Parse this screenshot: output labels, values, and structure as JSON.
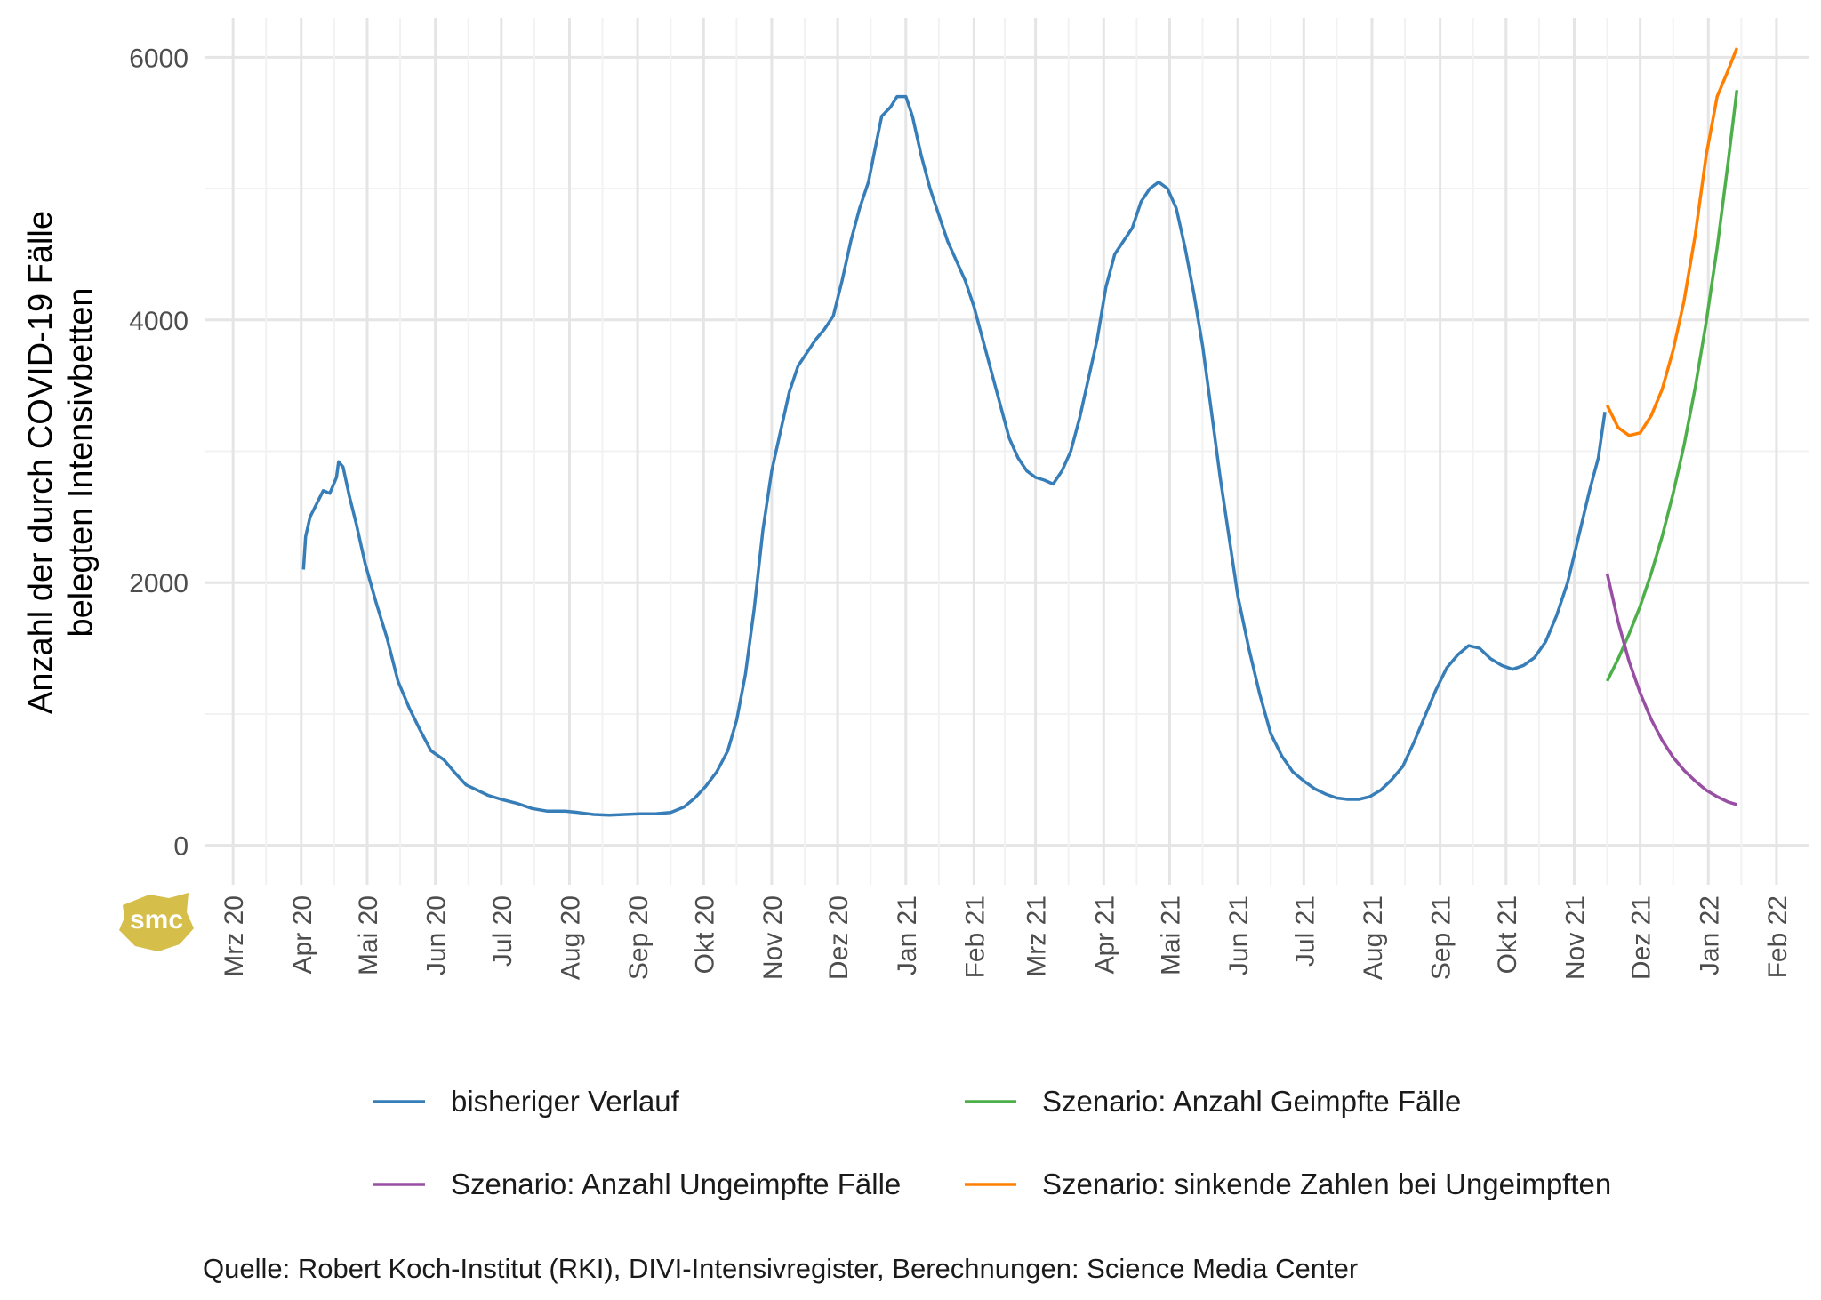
{
  "chart_data": {
    "type": "line",
    "ylabel_line1": "Anzahl der durch COVID-19 Fälle",
    "ylabel_line2": "belegten Intensivbetten",
    "xlabel": "",
    "ylim": [
      -300,
      6300
    ],
    "y_ticks": [
      0,
      2000,
      4000,
      6000
    ],
    "x_range": [
      "2020-02-17",
      "2022-02-16"
    ],
    "x_ticks": [
      {
        "date": "2020-03-01",
        "label": "Mrz 20"
      },
      {
        "date": "2020-04-01",
        "label": "Apr 20"
      },
      {
        "date": "2020-05-01",
        "label": "Mai 20"
      },
      {
        "date": "2020-06-01",
        "label": "Jun 20"
      },
      {
        "date": "2020-07-01",
        "label": "Jul 20"
      },
      {
        "date": "2020-08-01",
        "label": "Aug 20"
      },
      {
        "date": "2020-09-01",
        "label": "Sep 20"
      },
      {
        "date": "2020-10-01",
        "label": "Okt 20"
      },
      {
        "date": "2020-11-01",
        "label": "Nov 20"
      },
      {
        "date": "2020-12-01",
        "label": "Dez 20"
      },
      {
        "date": "2021-01-01",
        "label": "Jan 21"
      },
      {
        "date": "2021-02-01",
        "label": "Feb 21"
      },
      {
        "date": "2021-03-01",
        "label": "Mrz 21"
      },
      {
        "date": "2021-04-01",
        "label": "Apr 21"
      },
      {
        "date": "2021-05-01",
        "label": "Mai 21"
      },
      {
        "date": "2021-06-01",
        "label": "Jun 21"
      },
      {
        "date": "2021-07-01",
        "label": "Jul 21"
      },
      {
        "date": "2021-08-01",
        "label": "Aug 21"
      },
      {
        "date": "2021-09-01",
        "label": "Sep 21"
      },
      {
        "date": "2021-10-01",
        "label": "Okt 21"
      },
      {
        "date": "2021-11-01",
        "label": "Nov 21"
      },
      {
        "date": "2021-12-01",
        "label": "Dez 21"
      },
      {
        "date": "2022-01-01",
        "label": "Jan 22"
      },
      {
        "date": "2022-02-01",
        "label": "Feb 22"
      }
    ],
    "grid": true,
    "legend_position": "bottom",
    "series": [
      {
        "name": "bisheriger Verlauf",
        "color": "#377EB8",
        "points": [
          [
            "2020-04-02",
            2100
          ],
          [
            "2020-04-03",
            2350
          ],
          [
            "2020-04-05",
            2500
          ],
          [
            "2020-04-08",
            2600
          ],
          [
            "2020-04-11",
            2700
          ],
          [
            "2020-04-14",
            2680
          ],
          [
            "2020-04-17",
            2800
          ],
          [
            "2020-04-18",
            2920
          ],
          [
            "2020-04-20",
            2880
          ],
          [
            "2020-04-23",
            2650
          ],
          [
            "2020-04-26",
            2450
          ],
          [
            "2020-04-30",
            2150
          ],
          [
            "2020-05-05",
            1850
          ],
          [
            "2020-05-10",
            1580
          ],
          [
            "2020-05-15",
            1250
          ],
          [
            "2020-05-20",
            1050
          ],
          [
            "2020-05-25",
            880
          ],
          [
            "2020-05-30",
            720
          ],
          [
            "2020-06-05",
            650
          ],
          [
            "2020-06-10",
            550
          ],
          [
            "2020-06-15",
            460
          ],
          [
            "2020-06-20",
            420
          ],
          [
            "2020-06-25",
            380
          ],
          [
            "2020-07-01",
            350
          ],
          [
            "2020-07-08",
            320
          ],
          [
            "2020-07-15",
            280
          ],
          [
            "2020-07-22",
            260
          ],
          [
            "2020-07-30",
            260
          ],
          [
            "2020-08-05",
            250
          ],
          [
            "2020-08-12",
            235
          ],
          [
            "2020-08-19",
            230
          ],
          [
            "2020-08-26",
            235
          ],
          [
            "2020-09-02",
            240
          ],
          [
            "2020-09-09",
            240
          ],
          [
            "2020-09-16",
            250
          ],
          [
            "2020-09-22",
            290
          ],
          [
            "2020-09-27",
            360
          ],
          [
            "2020-10-02",
            450
          ],
          [
            "2020-10-07",
            560
          ],
          [
            "2020-10-12",
            720
          ],
          [
            "2020-10-16",
            950
          ],
          [
            "2020-10-20",
            1300
          ],
          [
            "2020-10-24",
            1800
          ],
          [
            "2020-10-28",
            2400
          ],
          [
            "2020-11-01",
            2850
          ],
          [
            "2020-11-05",
            3150
          ],
          [
            "2020-11-09",
            3450
          ],
          [
            "2020-11-13",
            3650
          ],
          [
            "2020-11-17",
            3750
          ],
          [
            "2020-11-21",
            3850
          ],
          [
            "2020-11-25",
            3930
          ],
          [
            "2020-11-29",
            4030
          ],
          [
            "2020-12-03",
            4300
          ],
          [
            "2020-12-07",
            4600
          ],
          [
            "2020-12-11",
            4850
          ],
          [
            "2020-12-15",
            5050
          ],
          [
            "2020-12-18",
            5300
          ],
          [
            "2020-12-21",
            5550
          ],
          [
            "2020-12-25",
            5620
          ],
          [
            "2020-12-28",
            5700
          ],
          [
            "2021-01-01",
            5700
          ],
          [
            "2021-01-04",
            5550
          ],
          [
            "2021-01-08",
            5250
          ],
          [
            "2021-01-12",
            5000
          ],
          [
            "2021-01-16",
            4800
          ],
          [
            "2021-01-20",
            4600
          ],
          [
            "2021-01-24",
            4450
          ],
          [
            "2021-01-28",
            4300
          ],
          [
            "2021-02-01",
            4100
          ],
          [
            "2021-02-05",
            3850
          ],
          [
            "2021-02-09",
            3600
          ],
          [
            "2021-02-13",
            3350
          ],
          [
            "2021-02-17",
            3100
          ],
          [
            "2021-02-21",
            2950
          ],
          [
            "2021-02-25",
            2850
          ],
          [
            "2021-03-01",
            2800
          ],
          [
            "2021-03-05",
            2780
          ],
          [
            "2021-03-09",
            2750
          ],
          [
            "2021-03-13",
            2850
          ],
          [
            "2021-03-17",
            3000
          ],
          [
            "2021-03-21",
            3250
          ],
          [
            "2021-03-25",
            3550
          ],
          [
            "2021-03-29",
            3850
          ],
          [
            "2021-04-02",
            4250
          ],
          [
            "2021-04-06",
            4500
          ],
          [
            "2021-04-10",
            4600
          ],
          [
            "2021-04-14",
            4700
          ],
          [
            "2021-04-18",
            4900
          ],
          [
            "2021-04-22",
            5000
          ],
          [
            "2021-04-26",
            5050
          ],
          [
            "2021-04-30",
            5000
          ],
          [
            "2021-05-04",
            4850
          ],
          [
            "2021-05-08",
            4550
          ],
          [
            "2021-05-12",
            4200
          ],
          [
            "2021-05-16",
            3800
          ],
          [
            "2021-05-20",
            3300
          ],
          [
            "2021-05-24",
            2800
          ],
          [
            "2021-05-28",
            2350
          ],
          [
            "2021-06-01",
            1900
          ],
          [
            "2021-06-06",
            1500
          ],
          [
            "2021-06-11",
            1150
          ],
          [
            "2021-06-16",
            850
          ],
          [
            "2021-06-21",
            680
          ],
          [
            "2021-06-26",
            560
          ],
          [
            "2021-07-01",
            490
          ],
          [
            "2021-07-06",
            430
          ],
          [
            "2021-07-11",
            390
          ],
          [
            "2021-07-16",
            360
          ],
          [
            "2021-07-21",
            350
          ],
          [
            "2021-07-26",
            350
          ],
          [
            "2021-07-31",
            370
          ],
          [
            "2021-08-05",
            420
          ],
          [
            "2021-08-10",
            500
          ],
          [
            "2021-08-15",
            600
          ],
          [
            "2021-08-20",
            780
          ],
          [
            "2021-08-25",
            980
          ],
          [
            "2021-08-30",
            1180
          ],
          [
            "2021-09-04",
            1350
          ],
          [
            "2021-09-09",
            1450
          ],
          [
            "2021-09-14",
            1520
          ],
          [
            "2021-09-19",
            1500
          ],
          [
            "2021-09-24",
            1420
          ],
          [
            "2021-09-29",
            1370
          ],
          [
            "2021-10-04",
            1340
          ],
          [
            "2021-10-09",
            1370
          ],
          [
            "2021-10-14",
            1430
          ],
          [
            "2021-10-19",
            1550
          ],
          [
            "2021-10-24",
            1750
          ],
          [
            "2021-10-29",
            2000
          ],
          [
            "2021-11-03",
            2350
          ],
          [
            "2021-11-08",
            2700
          ],
          [
            "2021-11-12",
            2950
          ],
          [
            "2021-11-15",
            3300
          ]
        ]
      },
      {
        "name": "Szenario: Anzahl Geimpfte Fälle",
        "color": "#4DAF4A",
        "points": [
          [
            "2021-11-16",
            1250
          ],
          [
            "2021-11-21",
            1420
          ],
          [
            "2021-11-26",
            1610
          ],
          [
            "2021-12-01",
            1820
          ],
          [
            "2021-12-06",
            2070
          ],
          [
            "2021-12-11",
            2350
          ],
          [
            "2021-12-16",
            2680
          ],
          [
            "2021-12-21",
            3050
          ],
          [
            "2021-12-26",
            3480
          ],
          [
            "2021-12-31",
            3980
          ],
          [
            "2022-01-05",
            4550
          ],
          [
            "2022-01-10",
            5200
          ],
          [
            "2022-01-14",
            5750
          ]
        ]
      },
      {
        "name": "Szenario: Anzahl Ungeimpfte Fälle",
        "color": "#984EA3",
        "points": [
          [
            "2021-11-16",
            2070
          ],
          [
            "2021-11-21",
            1700
          ],
          [
            "2021-11-26",
            1400
          ],
          [
            "2021-12-01",
            1160
          ],
          [
            "2021-12-06",
            960
          ],
          [
            "2021-12-11",
            800
          ],
          [
            "2021-12-16",
            670
          ],
          [
            "2021-12-21",
            570
          ],
          [
            "2021-12-26",
            490
          ],
          [
            "2021-12-31",
            420
          ],
          [
            "2022-01-05",
            370
          ],
          [
            "2022-01-10",
            330
          ],
          [
            "2022-01-14",
            310
          ]
        ]
      },
      {
        "name": "Szenario: sinkende Zahlen bei Ungeimpften",
        "color": "#FF7F00",
        "points": [
          [
            "2021-11-16",
            3350
          ],
          [
            "2021-11-21",
            3180
          ],
          [
            "2021-11-26",
            3120
          ],
          [
            "2021-12-01",
            3140
          ],
          [
            "2021-12-06",
            3270
          ],
          [
            "2021-12-11",
            3470
          ],
          [
            "2021-12-16",
            3770
          ],
          [
            "2021-12-21",
            4150
          ],
          [
            "2021-12-26",
            4640
          ],
          [
            "2021-12-31",
            5250
          ],
          [
            "2022-01-05",
            5700
          ],
          [
            "2022-01-10",
            5900
          ],
          [
            "2022-01-14",
            6070
          ]
        ]
      }
    ]
  },
  "caption": "Quelle: Robert Koch-Institut (RKI), DIVI-Intensivregister, Berechnungen: Science Media Center",
  "logo_text": "smc",
  "colors": {
    "logo": "#D6BE4A",
    "grid_major": "#E5E5E5",
    "grid_minor": "#F2F2F2"
  }
}
